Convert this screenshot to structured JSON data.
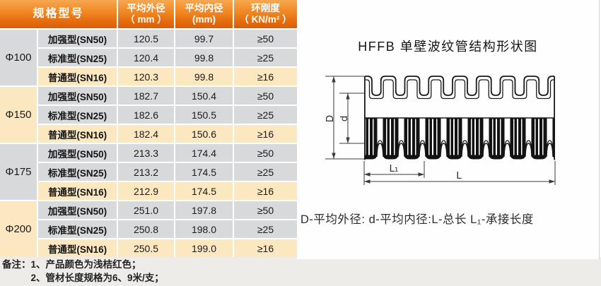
{
  "table": {
    "header": {
      "spec_label": "规格型号",
      "columns": [
        {
          "line1": "平均外径",
          "line2": "（ mm ）"
        },
        {
          "line1": "平均内径",
          "line2": "(mm)"
        },
        {
          "line1": "环刚度",
          "line2": "（ KN/m² ）"
        }
      ]
    },
    "groups": [
      {
        "size": "Φ100",
        "rows": [
          [
            "加强型(SN50)",
            "120.5",
            "99.7",
            "≥50"
          ],
          [
            "标准型(SN25)",
            "120.4",
            "99.8",
            "≥25"
          ],
          [
            "普通型(SN16)",
            "120.3",
            "99.8",
            "≥16"
          ]
        ]
      },
      {
        "size": "Φ150",
        "rows": [
          [
            "加强型(SN50)",
            "182.7",
            "150.4",
            "≥50"
          ],
          [
            "标准型(SN25)",
            "182.6",
            "150.5",
            "≥25"
          ],
          [
            "普通型(SN16)",
            "182.4",
            "150.6",
            "≥16"
          ]
        ]
      },
      {
        "size": "Φ175",
        "rows": [
          [
            "加强型(SN50)",
            "213.3",
            "174.4",
            "≥50"
          ],
          [
            "标准型(SN25)",
            "213.2",
            "174.5",
            "≥25"
          ],
          [
            "普通型(SN16)",
            "212.9",
            "174.5",
            "≥16"
          ]
        ]
      },
      {
        "size": "Φ200",
        "rows": [
          [
            "加强型(SN50)",
            "251.0",
            "197.8",
            "≥50"
          ],
          [
            "标准型(SN25)",
            "250.8",
            "198.0",
            "≥25"
          ],
          [
            "普通型(SN16)",
            "250.5",
            "199.0",
            "≥16"
          ]
        ]
      }
    ]
  },
  "notes": {
    "label": "备注：",
    "items": [
      "1、产品颜色为浅桔红色；",
      "2、管材长度规格为6、9米/支；"
    ]
  },
  "diagram": {
    "title": "HFFB 单壁波纹管结构形状图",
    "caption": "D-平均外径:  d-平均内径:L-总长  L₁-承接长度",
    "labels": {
      "D": "D",
      "d": "d",
      "L": "L",
      "L1": "L₁"
    }
  },
  "colors": {
    "header_orange_top": "#f7a850",
    "header_orange_bottom": "#d95e05",
    "row_gray": "#d8d9db",
    "row_cream": "#fbe8c0",
    "line_dark": "#1a1a1a"
  }
}
